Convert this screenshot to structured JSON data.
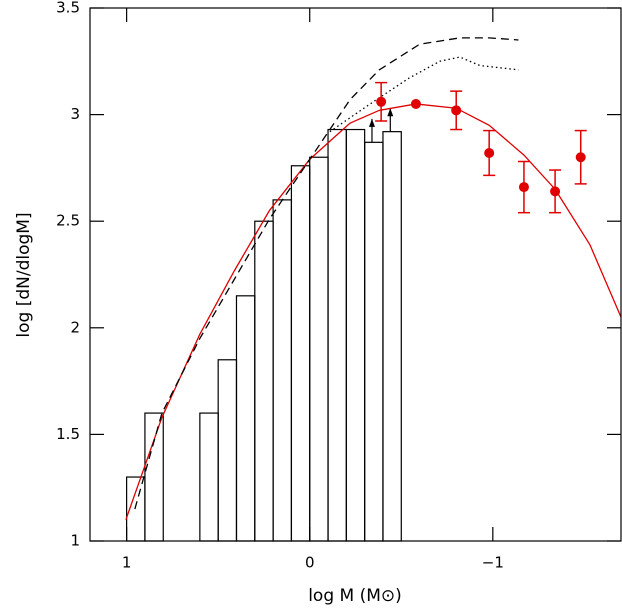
{
  "chart_data": {
    "type": "histogram",
    "xlabel": "log M (M⊙)",
    "ylabel": "log [dN/dlogM]",
    "xlim": [
      1.2,
      -1.7
    ],
    "ylim": [
      1,
      3.5
    ],
    "xticks": [
      1,
      0,
      {
        "value": -1,
        "label": "−1"
      }
    ],
    "yticks": [
      1,
      1.5,
      2,
      2.5,
      3,
      3.5
    ],
    "bins": [
      1.0,
      0.9,
      0.8,
      0.7,
      0.6,
      0.5,
      0.4,
      0.3,
      0.2,
      0.1,
      0.0,
      -0.1,
      -0.2,
      -0.3,
      -0.4,
      -0.5
    ],
    "counts": [
      1.3,
      1.6,
      null,
      null,
      1.6,
      1.85,
      2.15,
      2.5,
      2.6,
      2.76,
      2.8,
      2.93,
      2.93,
      2.87,
      2.92
    ],
    "color": "#000000",
    "arrows": [
      {
        "x": -0.34,
        "from": 2.87,
        "to": 2.98
      },
      {
        "x": -0.44,
        "from": 2.92,
        "to": 3.03
      }
    ],
    "series": [
      {
        "type": "line",
        "color": "#e00000",
        "dash": "solid",
        "x": [
          1.004,
          0.807,
          0.6,
          0.41,
          0.22,
          0.0,
          -0.22,
          -0.38,
          -0.58,
          -0.8,
          -0.98,
          -1.17,
          -1.34,
          -1.53,
          -1.7
        ],
        "values": [
          1.1,
          1.58,
          1.97,
          2.27,
          2.55,
          2.79,
          2.96,
          3.02,
          3.05,
          3.03,
          2.95,
          2.81,
          2.65,
          2.39,
          2.05
        ]
      },
      {
        "type": "line",
        "color": "#000000",
        "dash": "dashed",
        "x": [
          0.955,
          0.807,
          0.6,
          0.41,
          0.22,
          0.0,
          -0.22,
          -0.38,
          -0.6,
          -0.82,
          -0.98,
          -1.14
        ],
        "values": [
          1.15,
          1.6,
          1.95,
          2.23,
          2.51,
          2.79,
          3.07,
          3.21,
          3.33,
          3.36,
          3.36,
          3.35
        ]
      },
      {
        "type": "line",
        "color": "#000000",
        "dash": "dotted",
        "x": [
          -0.11,
          -0.33,
          -0.54,
          -0.71,
          -0.82,
          -0.93,
          -1.14
        ],
        "values": [
          2.92,
          3.05,
          3.17,
          3.25,
          3.27,
          3.23,
          3.21
        ]
      },
      {
        "type": "scatter",
        "color": "#e00000",
        "x": [
          -0.39,
          -0.58,
          -0.8,
          -0.98,
          -1.17,
          -1.34,
          -1.48
        ],
        "values": [
          3.06,
          3.05,
          3.02,
          2.82,
          2.66,
          2.64,
          2.8
        ],
        "errors": [
          0.09,
          0,
          0.09,
          0.105,
          0.12,
          0.1,
          0.125
        ]
      }
    ]
  }
}
